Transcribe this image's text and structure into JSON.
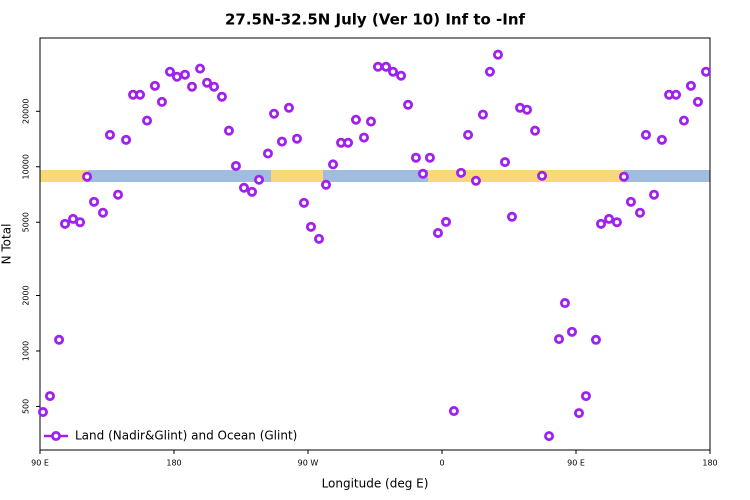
{
  "chart_data": {
    "type": "scatter",
    "title": "27.5N-32.5N July (Ver 10)   Inf to -Inf",
    "x_label": "Longitude (deg E)",
    "y_label": "N Total",
    "log_y": true,
    "legend_position": "bottom-left",
    "xlim": [
      90,
      540
    ],
    "xticks": [
      {
        "value": 90,
        "label": "90 E"
      },
      {
        "value": 180,
        "label": "180"
      },
      {
        "value": 270,
        "label": "90 W"
      },
      {
        "value": 360,
        "label": "0"
      },
      {
        "value": 450,
        "label": "90 E"
      },
      {
        "value": 540,
        "label": "180"
      }
    ],
    "ylim": [
      290,
      50000
    ],
    "yticks": [
      500,
      1000,
      2000,
      5000,
      10000,
      20000
    ],
    "series": [
      {
        "name": "Land (Nadir&Glint) and Ocean (Glint)",
        "color": "#a020f0",
        "x": [
          92,
          96.7,
          102.8,
          106.8,
          112.2,
          116.9,
          121.6,
          126.3,
          132.3,
          137,
          142.4,
          147.8,
          152.5,
          157.2,
          161.9,
          167.2,
          171.9,
          177.3,
          182,
          187.4,
          192.1,
          197.5,
          202.2,
          206.9,
          212.2,
          216.9,
          221.6,
          227,
          232.4,
          237.1,
          243.1,
          247.2,
          252.5,
          257.2,
          262.6,
          267.3,
          272,
          277.4,
          282.1,
          286.8,
          292.2,
          296.9,
          302.2,
          307.6,
          312.3,
          317,
          322.4,
          327.1,
          332.5,
          337.2,
          342.5,
          347.2,
          351.9,
          357.3,
          362.7,
          368,
          372.8,
          377.5,
          382.8,
          387.5,
          392.2,
          397.6,
          402.3,
          407,
          412.4,
          417.1,
          422.5,
          427.2,
          431.9,
          438.6,
          442.6,
          447.3,
          452,
          456.7,
          463.4,
          466.8,
          472.2,
          477.5,
          482.2,
          486.9,
          493,
          497,
          502.4,
          507.7,
          512.5,
          517.2,
          522.5,
          527.2,
          531.9,
          537.3
        ],
        "values": [
          466,
          569,
          1150,
          4900,
          5210,
          5000,
          8830,
          6450,
          5630,
          14900,
          7050,
          14000,
          24600,
          24600,
          17800,
          27500,
          22500,
          32800,
          30800,
          31600,
          27200,
          34100,
          28600,
          27200,
          24000,
          15700,
          10100,
          7690,
          7310,
          8500,
          11800,
          19400,
          13700,
          20900,
          14200,
          6370,
          4720,
          4060,
          7980,
          10300,
          13500,
          13500,
          18000,
          14400,
          17600,
          34900,
          34900,
          32800,
          31200,
          21700,
          11200,
          9160,
          11200,
          4370,
          5020,
          472,
          9270,
          14900,
          8390,
          19200,
          32800,
          40600,
          10600,
          5350,
          20900,
          20400,
          15700,
          8930,
          345,
          1160,
          1820,
          1270,
          460,
          569,
          1150,
          4900,
          5210,
          5000,
          8830,
          6450,
          5630,
          14900,
          7050,
          14000,
          24600,
          24600,
          17800,
          27500,
          22500,
          32800
        ]
      }
    ]
  }
}
